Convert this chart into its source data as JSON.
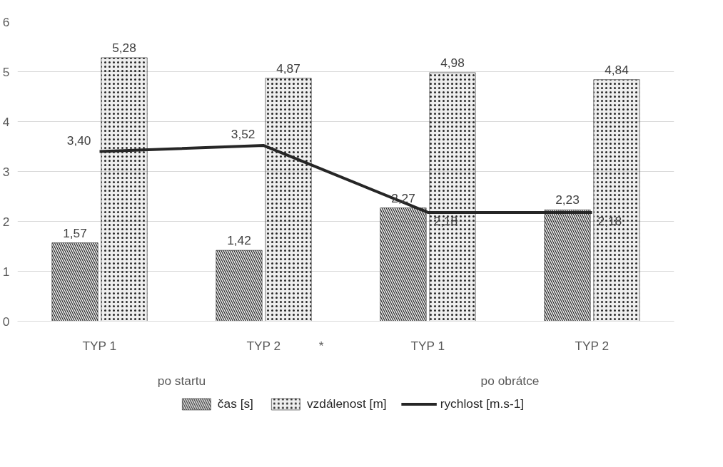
{
  "chart_data": {
    "type": "bar",
    "categories": [
      "TYP 1",
      "TYP 2",
      "TYP 1",
      "TYP 2"
    ],
    "series": [
      {
        "name": "čas [s]",
        "color": "#262626",
        "values": [
          1.57,
          1.42,
          2.27,
          2.23
        ],
        "value_labels": [
          "1,57",
          "1,42",
          "2,27",
          "2,23"
        ]
      },
      {
        "name": "vzdálenost [m]",
        "color": "#262626",
        "values": [
          5.28,
          4.87,
          4.98,
          4.84
        ],
        "value_labels": [
          "5,28",
          "4,87",
          "4,98",
          "4,84"
        ]
      },
      {
        "name": "rychlost [m.s-1]",
        "type": "line",
        "color": "#262626",
        "values": [
          3.4,
          3.52,
          2.18,
          2.18
        ],
        "value_labels": [
          "3,40",
          "3,52",
          "2,18",
          "2,18"
        ]
      }
    ],
    "annotations": [
      "po startu",
      "po obrátce",
      "*"
    ],
    "ylim": [
      0,
      6
    ],
    "yticks": [
      0,
      1,
      2,
      3,
      4,
      5,
      6
    ],
    "grid": "y",
    "legend": "bottom"
  }
}
